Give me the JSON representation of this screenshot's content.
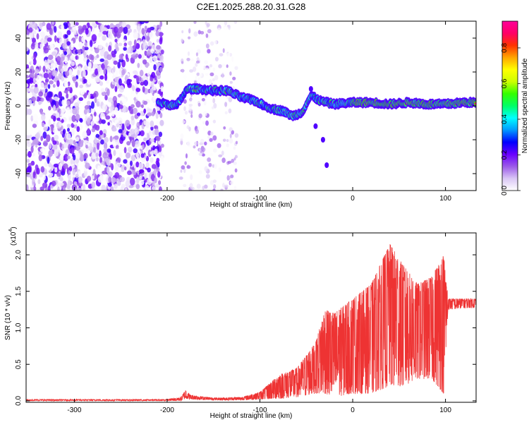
{
  "title": "C2E1.2025.288.20.31.G28",
  "chart_data": [
    {
      "type": "heatmap",
      "name": "spectrogram",
      "xlabel": "Height of straight line (km)",
      "ylabel": "Frequency (Hz)",
      "xlim": [
        -352,
        133
      ],
      "ylim": [
        -50,
        50
      ],
      "xticks": [
        -300,
        -200,
        -100,
        0,
        100
      ],
      "yticks": [
        -40,
        -20,
        0,
        20,
        40
      ],
      "colorbar": {
        "label": "Normalized spectral amplitude",
        "range": [
          0.0,
          0.95
        ],
        "ticks": [
          0.0,
          0.2,
          0.4,
          0.6,
          0.8
        ],
        "tick_labels": [
          "0.0",
          "0.2",
          "0.4",
          "0.6",
          "0.8"
        ],
        "colors": [
          "#ffffff",
          "#d9c6f5",
          "#9b59e8",
          "#6a00ff",
          "#0000ff",
          "#0099ff",
          "#00ffff",
          "#00ff66",
          "#33ff00",
          "#ccff00",
          "#ffff00",
          "#ffa500",
          "#ff3300",
          "#ff0066",
          "#ff0099"
        ]
      },
      "noise_region": {
        "x": [
          -352,
          -205
        ],
        "y": [
          -50,
          50
        ],
        "amplitude": 0.22
      },
      "sparse_region": {
        "x": [
          -185,
          -125
        ],
        "y": [
          -50,
          50
        ],
        "amplitude": 0.08
      },
      "signal_track": [
        {
          "x": -210,
          "y": 2
        },
        {
          "x": -200,
          "y": 1
        },
        {
          "x": -190,
          "y": 0
        },
        {
          "x": -178,
          "y": 10
        },
        {
          "x": -165,
          "y": 10
        },
        {
          "x": -150,
          "y": 9
        },
        {
          "x": -135,
          "y": 9
        },
        {
          "x": -120,
          "y": 5
        },
        {
          "x": -105,
          "y": 3
        },
        {
          "x": -95,
          "y": 0
        },
        {
          "x": -85,
          "y": -2
        },
        {
          "x": -75,
          "y": -3
        },
        {
          "x": -65,
          "y": -6
        },
        {
          "x": -55,
          "y": -4
        },
        {
          "x": -45,
          "y": 6
        },
        {
          "x": -35,
          "y": 3
        },
        {
          "x": -20,
          "y": 1
        },
        {
          "x": 0,
          "y": 2
        },
        {
          "x": 20,
          "y": 2
        },
        {
          "x": 40,
          "y": 1
        },
        {
          "x": 60,
          "y": 2
        },
        {
          "x": 80,
          "y": 1
        },
        {
          "x": 100,
          "y": 1
        },
        {
          "x": 120,
          "y": 2
        },
        {
          "x": 133,
          "y": 2
        }
      ]
    },
    {
      "type": "line",
      "name": "snr",
      "xlabel": "Height of straight line (km)",
      "ylabel": "SNR (10 * v/v)",
      "yscale_label": "(x10",
      "yscale_exp": "4",
      "yscale_close": ")",
      "xlim": [
        -352,
        133
      ],
      "ylim": [
        -0.02,
        2.3
      ],
      "xticks": [
        -300,
        -200,
        -100,
        0,
        100
      ],
      "yticks": [
        0.0,
        0.5,
        1.0,
        1.5,
        2.0
      ],
      "ytick_labels": [
        "0.0",
        "0.5",
        "1.0",
        "1.5",
        "2.0"
      ],
      "color": "#ee3333",
      "series": [
        {
          "name": "SNR",
          "envelope": [
            {
              "x": -352,
              "lo": 0.0,
              "hi": 0.02
            },
            {
              "x": -200,
              "lo": 0.0,
              "hi": 0.02
            },
            {
              "x": -185,
              "lo": 0.0,
              "hi": 0.05
            },
            {
              "x": -180,
              "lo": 0.03,
              "hi": 0.15
            },
            {
              "x": -175,
              "lo": 0.02,
              "hi": 0.08
            },
            {
              "x": -150,
              "lo": 0.01,
              "hi": 0.04
            },
            {
              "x": -120,
              "lo": 0.01,
              "hi": 0.05
            },
            {
              "x": -100,
              "lo": 0.02,
              "hi": 0.12
            },
            {
              "x": -80,
              "lo": 0.03,
              "hi": 0.35
            },
            {
              "x": -60,
              "lo": 0.05,
              "hi": 0.45
            },
            {
              "x": -40,
              "lo": 0.1,
              "hi": 0.8
            },
            {
              "x": -30,
              "lo": 0.1,
              "hi": 1.25
            },
            {
              "x": -20,
              "lo": 0.05,
              "hi": 1.2
            },
            {
              "x": 0,
              "lo": 0.1,
              "hi": 1.4
            },
            {
              "x": 20,
              "lo": 0.1,
              "hi": 1.6
            },
            {
              "x": 40,
              "lo": 0.2,
              "hi": 2.15
            },
            {
              "x": 55,
              "lo": 0.2,
              "hi": 1.85
            },
            {
              "x": 70,
              "lo": 0.3,
              "hi": 1.6
            },
            {
              "x": 85,
              "lo": 0.3,
              "hi": 1.7
            },
            {
              "x": 98,
              "lo": 0.1,
              "hi": 2.0
            },
            {
              "x": 103,
              "lo": 1.25,
              "hi": 1.4
            },
            {
              "x": 133,
              "lo": 1.28,
              "hi": 1.4
            }
          ]
        }
      ]
    }
  ]
}
